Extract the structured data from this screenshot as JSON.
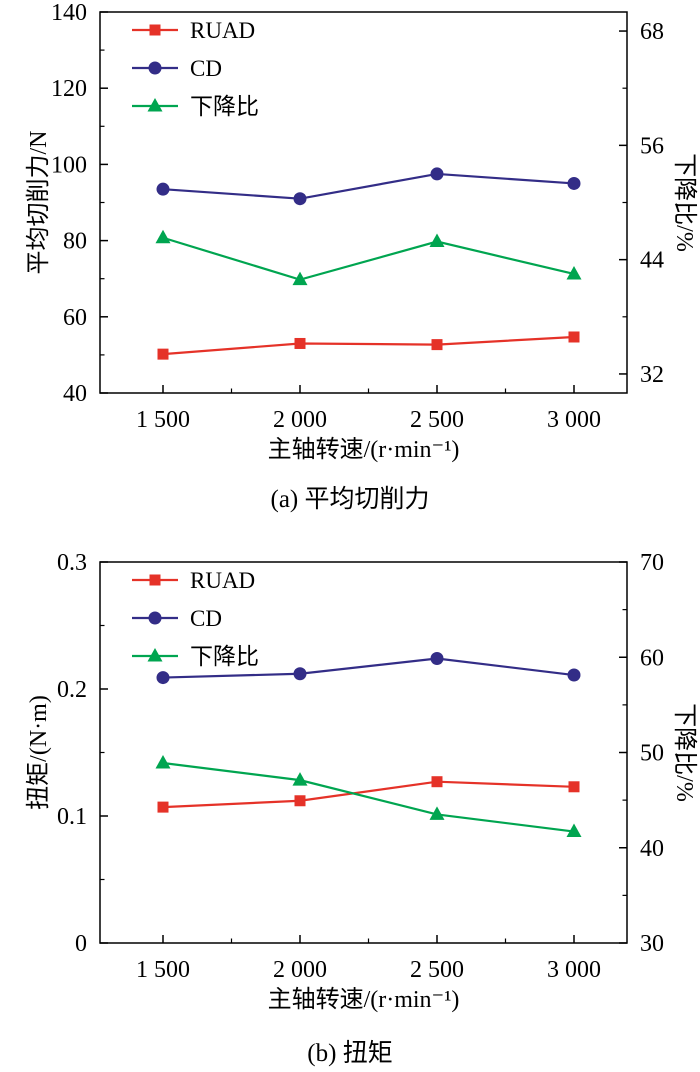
{
  "page": {
    "background": "#ffffff"
  },
  "chart_data": [
    {
      "type": "line",
      "caption": "(a) 平均切削力",
      "xlabel": "主轴转速/(r·min⁻¹)",
      "categories": [
        "1 500",
        "2 000",
        "2 500",
        "3 000"
      ],
      "left_axis": {
        "label": "平均切削力/N",
        "min": 40,
        "max": 140,
        "ticks": [
          40,
          60,
          80,
          100,
          120,
          140
        ]
      },
      "right_axis": {
        "label": "下降比/%",
        "min": 30,
        "max": 70,
        "ticks": [
          32,
          44,
          56,
          68
        ]
      },
      "legend_position": "top-left",
      "grid": false,
      "series": [
        {
          "name": "RUAD",
          "axis": "left",
          "marker": "square",
          "color": "#e53228",
          "values": [
            50.2,
            53.0,
            52.7,
            54.7
          ]
        },
        {
          "name": "CD",
          "axis": "left",
          "marker": "circle",
          "color": "#332d87",
          "values": [
            93.5,
            91.0,
            97.5,
            95.0
          ]
        },
        {
          "name": "下降比",
          "axis": "right",
          "marker": "triangle",
          "color": "#00a550",
          "values": [
            46.3,
            41.9,
            45.9,
            42.5
          ]
        }
      ]
    },
    {
      "type": "line",
      "caption": "(b) 扭矩",
      "xlabel": "主轴转速/(r·min⁻¹)",
      "categories": [
        "1 500",
        "2 000",
        "2 500",
        "3 000"
      ],
      "left_axis": {
        "label": "扭矩/(N·m)",
        "min": 0,
        "max": 0.3,
        "ticks": [
          0,
          0.1,
          0.2,
          0.3
        ]
      },
      "right_axis": {
        "label": "下降比/%",
        "min": 30,
        "max": 70,
        "ticks": [
          30,
          40,
          50,
          60,
          70
        ]
      },
      "legend_position": "top-left",
      "grid": false,
      "series": [
        {
          "name": "RUAD",
          "axis": "left",
          "marker": "square",
          "color": "#e53228",
          "values": [
            0.107,
            0.112,
            0.127,
            0.123
          ]
        },
        {
          "name": "CD",
          "axis": "left",
          "marker": "circle",
          "color": "#332d87",
          "values": [
            0.209,
            0.212,
            0.224,
            0.211
          ]
        },
        {
          "name": "下降比",
          "axis": "right",
          "marker": "triangle",
          "color": "#00a550",
          "values": [
            48.9,
            47.1,
            43.5,
            41.7
          ]
        }
      ]
    }
  ]
}
